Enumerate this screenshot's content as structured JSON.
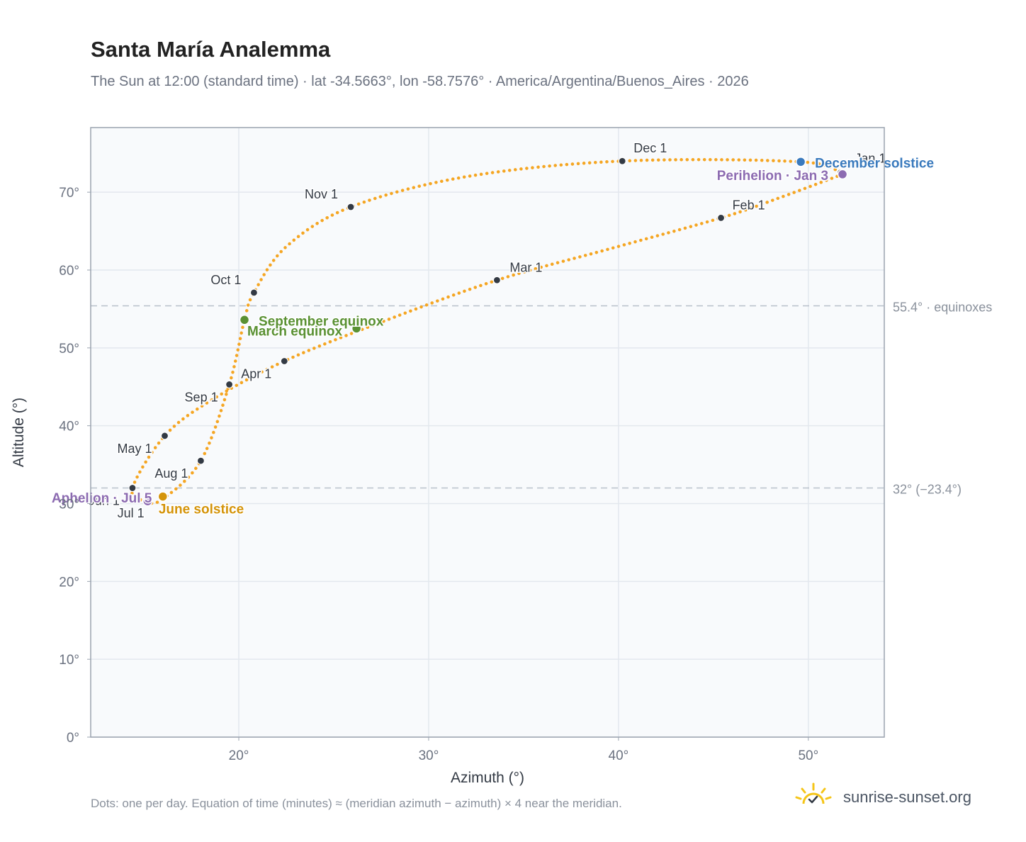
{
  "title": "Santa María Analemma",
  "subtitle": "The Sun at 12:00 (standard time) · lat -34.5663°, lon -58.7576° · America/Argentina/Buenos_Aires · 2026",
  "footnote": "Dots: one per day. Equation of time (minutes) ≈ (meridian azimuth − azimuth) × 4 near the meridian.",
  "brand": "sunrise-sunset.org",
  "colors": {
    "path": "#f5a623",
    "month": "#333a44",
    "equinox": "#5a9133",
    "dec_solstice": "#3a7abd",
    "jun_solstice": "#d4940a",
    "perihelion": "#8c6bb1"
  },
  "chart_data": {
    "type": "scatter",
    "xlabel": "Azimuth (°)",
    "ylabel": "Altitude (°)",
    "xlim": [
      12.2,
      54
    ],
    "ylim": [
      0,
      78.3
    ],
    "xticks": [
      20,
      30,
      40,
      50
    ],
    "xtick_labels": [
      "20°",
      "30°",
      "40°",
      "50°"
    ],
    "yticks": [
      0,
      10,
      20,
      30,
      40,
      50,
      60,
      70
    ],
    "ytick_labels": [
      "0°",
      "10°",
      "20°",
      "30°",
      "40°",
      "50°",
      "60°",
      "70°"
    ],
    "grid": true,
    "reference_lines": [
      {
        "y": 55.4,
        "label": "55.4° · equinoxes"
      },
      {
        "y": 32,
        "label": "32° (−23.4°)"
      }
    ],
    "path_anchors": [
      {
        "x": 51.8,
        "y": 72.3
      },
      {
        "x": 48.5,
        "y": 69.3
      },
      {
        "x": 45.4,
        "y": 66.7
      },
      {
        "x": 39.5,
        "y": 62.7
      },
      {
        "x": 33.6,
        "y": 58.7
      },
      {
        "x": 27.5,
        "y": 53.3
      },
      {
        "x": 22.4,
        "y": 48.3
      },
      {
        "x": 18.5,
        "y": 43.2
      },
      {
        "x": 16.1,
        "y": 38.7
      },
      {
        "x": 14.4,
        "y": 32.0
      },
      {
        "x": 15.1,
        "y": 30.3
      },
      {
        "x": 16.0,
        "y": 30.6
      },
      {
        "x": 18.0,
        "y": 35.5
      },
      {
        "x": 19.5,
        "y": 45.3
      },
      {
        "x": 20.3,
        "y": 53.6
      },
      {
        "x": 20.8,
        "y": 57.1
      },
      {
        "x": 22.5,
        "y": 63.0
      },
      {
        "x": 25.9,
        "y": 68.1
      },
      {
        "x": 32.0,
        "y": 72.0
      },
      {
        "x": 40.2,
        "y": 74.0
      },
      {
        "x": 49.6,
        "y": 73.9
      },
      {
        "x": 51.8,
        "y": 72.3
      }
    ],
    "month_markers": [
      {
        "label": "Jan 1",
        "x": 51.7,
        "y": 72.5,
        "ha": "start",
        "dx": 20,
        "dy": -14
      },
      {
        "label": "Feb 1",
        "x": 45.4,
        "y": 66.7,
        "ha": "start",
        "dx": 16,
        "dy": -12
      },
      {
        "label": "Mar 1",
        "x": 33.6,
        "y": 58.7,
        "ha": "start",
        "dx": 18,
        "dy": -12
      },
      {
        "label": "Apr 1",
        "x": 22.4,
        "y": 48.3,
        "ha": "end",
        "dx": -18,
        "dy": 24
      },
      {
        "label": "May 1",
        "x": 16.1,
        "y": 38.7,
        "ha": "end",
        "dx": -18,
        "dy": 24
      },
      {
        "label": "Jun 1",
        "x": 14.4,
        "y": 32.0,
        "ha": "end",
        "dx": -18,
        "dy": 24
      },
      {
        "label": "Jul 1",
        "x": 15.1,
        "y": 30.4,
        "ha": "end",
        "dx": -2,
        "dy": 24
      },
      {
        "label": "Aug 1",
        "x": 18.0,
        "y": 35.5,
        "ha": "end",
        "dx": -18,
        "dy": 24
      },
      {
        "label": "Sep 1",
        "x": 19.5,
        "y": 45.3,
        "ha": "end",
        "dx": -16,
        "dy": 24
      },
      {
        "label": "Oct 1",
        "x": 20.8,
        "y": 57.1,
        "ha": "end",
        "dx": -18,
        "dy": -12
      },
      {
        "label": "Nov 1",
        "x": 25.9,
        "y": 68.1,
        "ha": "end",
        "dx": -18,
        "dy": -12
      },
      {
        "label": "Dec 1",
        "x": 40.2,
        "y": 74.0,
        "ha": "start",
        "dx": 16,
        "dy": -12
      }
    ],
    "events": [
      {
        "label": "December solstice",
        "x": 49.6,
        "y": 73.9,
        "color": "#3a7abd",
        "ha": "start",
        "dx": 20,
        "dy": 8
      },
      {
        "label": "Perihelion · Jan 3",
        "x": 51.8,
        "y": 72.3,
        "color": "#8c6bb1",
        "ha": "end",
        "dx": -20,
        "dy": 8
      },
      {
        "label": "March equinox",
        "x": 26.2,
        "y": 52.5,
        "color": "#5a9133",
        "ha": "end",
        "dx": -20,
        "dy": 10
      },
      {
        "label": "September equinox",
        "x": 20.3,
        "y": 53.6,
        "color": "#5a9133",
        "ha": "start",
        "dx": 20,
        "dy": 8
      },
      {
        "label": "June solstice",
        "x": 16.0,
        "y": 30.9,
        "color": "#d4940a",
        "ha": "start",
        "dx": -6,
        "dy": 24
      },
      {
        "label": "Aphelion · Jul 5",
        "x": 15.2,
        "y": 30.3,
        "color": "#8c6bb1",
        "ha": "end",
        "dx": 6,
        "dy": 2
      }
    ]
  }
}
